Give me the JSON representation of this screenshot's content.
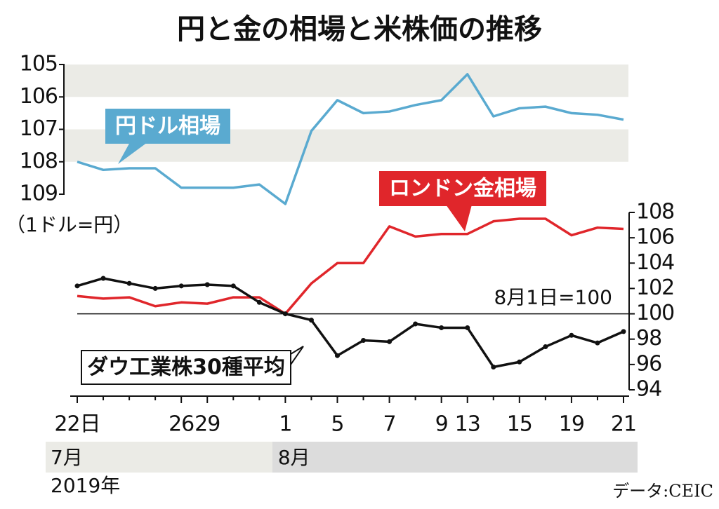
{
  "title": "円と金の相場と米株価の推移",
  "year": "2019年",
  "months": [
    "7月",
    "8月"
  ],
  "source": "データ:CEIC",
  "chart_data": [
    {
      "type": "line",
      "y_label": "（1ドル=円）",
      "ylim": [
        105,
        109
      ],
      "inverted": true,
      "yticks": [
        105,
        106,
        107,
        108,
        109
      ],
      "series": [
        {
          "name": "円ドル相場",
          "color": "#5aaad0",
          "values": [
            108.0,
            108.25,
            108.2,
            108.2,
            108.8,
            108.8,
            108.8,
            108.7,
            109.3,
            107.05,
            106.1,
            106.5,
            106.45,
            106.25,
            106.1,
            105.3,
            106.6,
            106.35,
            106.3,
            106.5,
            106.55,
            106.7
          ]
        }
      ]
    },
    {
      "type": "line",
      "categories": [
        "22日",
        null,
        null,
        null,
        "26",
        "29",
        null,
        null,
        "1",
        null,
        "5",
        null,
        "7",
        null,
        "9",
        "13",
        null,
        "15",
        null,
        "19",
        null,
        "21"
      ],
      "ylim": [
        94,
        108
      ],
      "yticks": [
        94,
        96,
        98,
        100,
        102,
        104,
        106,
        108
      ],
      "reference_line": {
        "value": 100,
        "label": "8月1日=100"
      },
      "series": [
        {
          "name": "ロンドン金相場",
          "color": "#e0262b",
          "values": [
            101.4,
            101.2,
            101.3,
            100.6,
            100.9,
            100.8,
            101.3,
            101.3,
            100,
            102.4,
            104,
            104,
            106.9,
            106.1,
            106.3,
            106.3,
            107.3,
            107.5,
            107.5,
            106.2,
            106.8,
            106.7
          ]
        },
        {
          "name": "ダウ工業株30種平均",
          "color": "#111111",
          "markers": true,
          "values": [
            102.2,
            102.8,
            102.4,
            102.0,
            102.2,
            102.3,
            102.2,
            100.9,
            100,
            99.5,
            96.7,
            97.9,
            97.8,
            99.2,
            98.9,
            98.9,
            95.8,
            96.2,
            97.4,
            98.3,
            97.7,
            98.6
          ]
        }
      ]
    }
  ]
}
